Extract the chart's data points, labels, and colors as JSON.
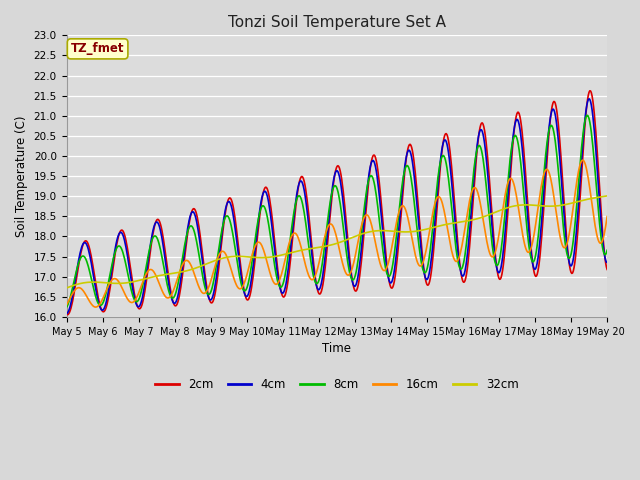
{
  "title": "Tonzi Soil Temperature Set A",
  "xlabel": "Time",
  "ylabel": "Soil Temperature (C)",
  "annotation": "TZ_fmet",
  "ylim": [
    16.0,
    23.0
  ],
  "yticks": [
    16.0,
    16.5,
    17.0,
    17.5,
    18.0,
    18.5,
    19.0,
    19.5,
    20.0,
    20.5,
    21.0,
    21.5,
    22.0,
    22.5,
    23.0
  ],
  "x_tick_labels": [
    "May 5",
    "May 6",
    "May 7",
    "May 8",
    "May 9",
    "May 10",
    "May 11",
    "May 12",
    "May 13",
    "May 14",
    "May 15",
    "May 16",
    "May 17",
    "May 18",
    "May 19",
    "May 20"
  ],
  "series": {
    "2cm": {
      "color": "#dd0000",
      "lw": 1.2
    },
    "4cm": {
      "color": "#0000cc",
      "lw": 1.2
    },
    "8cm": {
      "color": "#00bb00",
      "lw": 1.2
    },
    "16cm": {
      "color": "#ff8800",
      "lw": 1.2
    },
    "32cm": {
      "color": "#cccc00",
      "lw": 1.2
    }
  },
  "fig_bg_color": "#d8d8d8",
  "plot_bg_color": "#dcdcdc",
  "grid_color": "#ffffff",
  "annotation_bg": "#ffffcc",
  "annotation_border": "#aaaa00",
  "annotation_text_color": "#880000",
  "figsize": [
    6.4,
    4.8
  ],
  "dpi": 100
}
